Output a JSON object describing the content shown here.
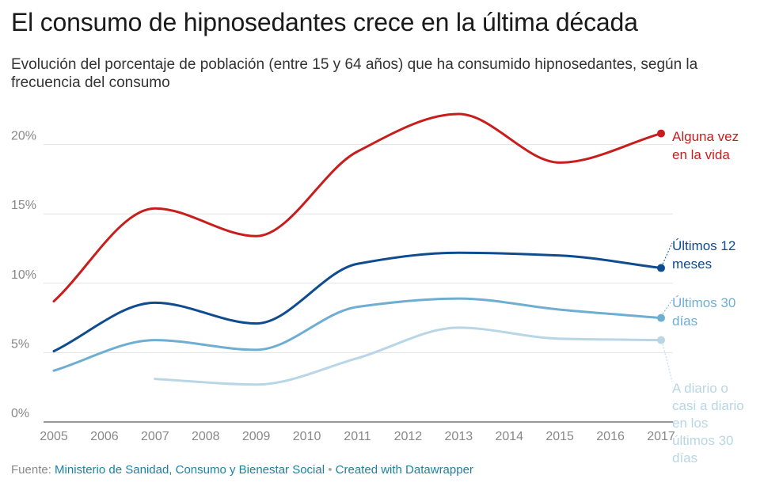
{
  "header": {
    "title": "El consumo de hipnosedantes crece en la última década",
    "subtitle": "Evolución del porcentaje de población (entre 15 y 64 años) que ha consumido hipnosedantes, según la frecuencia del consumo"
  },
  "footer": {
    "source_label": "Fuente:",
    "source_link": "Ministerio de Sanidad, Consumo y Bienestar Social",
    "separator": "•",
    "credit_link": "Created with Datawrapper"
  },
  "chart_data": {
    "type": "line",
    "x": [
      2005,
      2006,
      2007,
      2008,
      2009,
      2010,
      2011,
      2012,
      2013,
      2014,
      2015,
      2016,
      2017
    ],
    "x_tick_labels": [
      "2005",
      "2006",
      "2007",
      "2008",
      "2009",
      "2010",
      "2011",
      "2012",
      "2013",
      "2014",
      "2015",
      "2016",
      "2017"
    ],
    "ylim": [
      0,
      25
    ],
    "y_ticks": [
      0,
      5,
      10,
      15,
      20
    ],
    "y_tick_labels": [
      "0%",
      "5%",
      "10%",
      "15%",
      "20%"
    ],
    "grid": true,
    "legend": "direct labels at line ends",
    "series": [
      {
        "name": "Alguna vez en la vida",
        "label_lines": [
          "Alguna vez",
          "en la vida"
        ],
        "color": "#c71e1d",
        "points": [
          [
            2005,
            8.7
          ],
          [
            2007,
            15.4
          ],
          [
            2009,
            13.4
          ],
          [
            2011,
            19.5
          ],
          [
            2013,
            22.2
          ],
          [
            2015,
            18.7
          ],
          [
            2017,
            20.8
          ]
        ]
      },
      {
        "name": "Últimos 12 meses",
        "label_lines": [
          "Últimos 12",
          "meses"
        ],
        "color": "#0f4c8f",
        "points": [
          [
            2005,
            5.1
          ],
          [
            2007,
            8.6
          ],
          [
            2009,
            7.1
          ],
          [
            2011,
            11.4
          ],
          [
            2013,
            12.2
          ],
          [
            2015,
            12.0
          ],
          [
            2017,
            11.1
          ]
        ]
      },
      {
        "name": "Últimos 30 días",
        "label_lines": [
          "Últimos 30",
          "días"
        ],
        "color": "#6faed3",
        "points": [
          [
            2005,
            3.7
          ],
          [
            2007,
            5.9
          ],
          [
            2009,
            5.2
          ],
          [
            2011,
            8.3
          ],
          [
            2013,
            8.9
          ],
          [
            2015,
            8.1
          ],
          [
            2017,
            7.5
          ]
        ]
      },
      {
        "name": "A diario o casi a diario en los últimos 30 días",
        "label_lines": [
          "A diario o",
          "casi a diario",
          "en los",
          "últimos 30",
          "días"
        ],
        "color": "#b9d6e6",
        "points": [
          [
            2007,
            3.1
          ],
          [
            2009,
            2.7
          ],
          [
            2011,
            4.6
          ],
          [
            2013,
            6.8
          ],
          [
            2015,
            6.0
          ],
          [
            2017,
            5.9
          ]
        ]
      }
    ]
  }
}
